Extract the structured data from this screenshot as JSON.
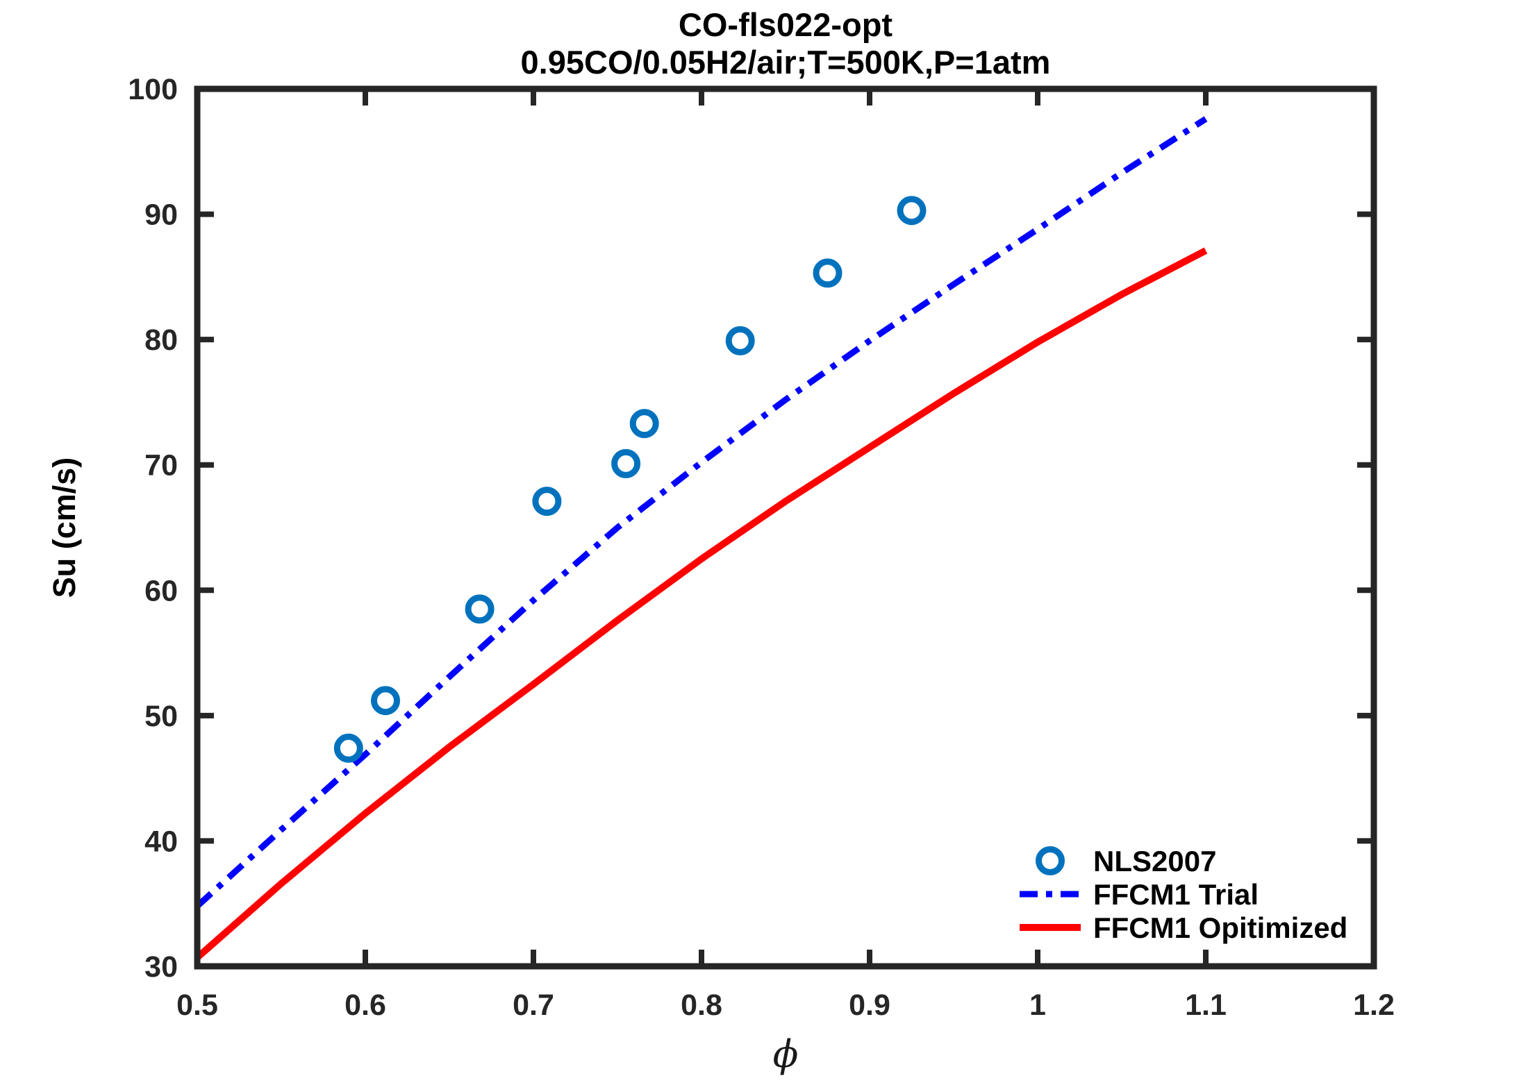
{
  "figure": {
    "background": "#ffffff"
  },
  "chart_data": {
    "type": "line",
    "title": "CO-fls022-opt",
    "subtitle": "0.95CO/0.05H2/air;T=500K,P=1atm",
    "xlabel": "ϕ",
    "ylabel": "Su (cm/s)",
    "xlim": [
      0.5,
      1.2
    ],
    "ylim": [
      30,
      100
    ],
    "x_ticks": [
      0.5,
      0.6,
      0.7,
      0.8,
      0.9,
      1,
      1.1,
      1.2
    ],
    "x_tick_labels": [
      "0.5",
      "0.6",
      "0.7",
      "0.8",
      "0.9",
      "1",
      "1.1",
      "1.2"
    ],
    "y_ticks": [
      30,
      40,
      50,
      60,
      70,
      80,
      90,
      100
    ],
    "y_tick_labels": [
      "30",
      "40",
      "50",
      "60",
      "70",
      "80",
      "90",
      "100"
    ],
    "grid": false,
    "box": true,
    "tick_direction": "in",
    "legend_position": "lower right",
    "legend_border": false,
    "series": [
      {
        "name": "NLS2007",
        "type": "scatter",
        "marker": "open-circle",
        "color": "#0072BD",
        "x": [
          0.59,
          0.612,
          0.668,
          0.708,
          0.755,
          0.766,
          0.823,
          0.875,
          0.925
        ],
        "y": [
          47.4,
          51.2,
          58.5,
          67.1,
          70.1,
          73.3,
          79.9,
          85.3,
          90.3
        ]
      },
      {
        "name": "FFCM1 Trial",
        "type": "line",
        "style": "dash-dot",
        "color": "#0000FF",
        "x": [
          0.5,
          0.55,
          0.6,
          0.65,
          0.7,
          0.75,
          0.8,
          0.85,
          0.9,
          0.95,
          1.0,
          1.05,
          1.1
        ],
        "y": [
          34.8,
          40.9,
          46.9,
          53.1,
          59.2,
          65.0,
          70.2,
          75.2,
          79.9,
          84.4,
          88.8,
          93.3,
          97.6
        ]
      },
      {
        "name": "FFCM1 Opitimized",
        "type": "line",
        "style": "solid",
        "color": "#FF0000",
        "x": [
          0.5,
          0.55,
          0.6,
          0.65,
          0.7,
          0.75,
          0.8,
          0.85,
          0.9,
          0.95,
          1.0,
          1.05,
          1.1
        ],
        "y": [
          30.7,
          36.6,
          42.2,
          47.5,
          52.5,
          57.6,
          62.5,
          67.1,
          71.4,
          75.7,
          79.8,
          83.6,
          87.1
        ]
      }
    ],
    "axis_color": "#262626",
    "text_color": "#000000"
  }
}
